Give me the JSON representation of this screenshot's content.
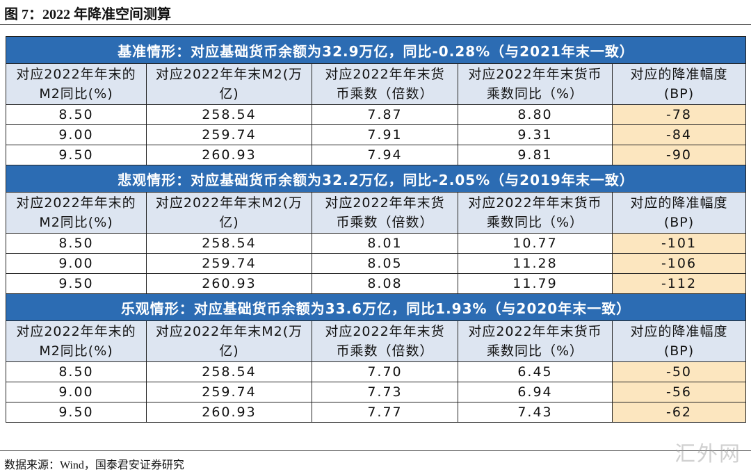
{
  "title": "图 7：2022 年降准空间测算",
  "sections": [
    {
      "heading": "基准情形：对应基础货币余额为32.9万亿，同比-0.28%（与2021年末一致）",
      "headers": [
        [
          "对应2022年年末的",
          "M2同比(%)"
        ],
        [
          "对应2022年年末M2(万",
          "亿)"
        ],
        [
          "对应2022年年末货",
          "币乘数（倍数）"
        ],
        [
          "对应2022年年末货币",
          "乘数同比（%）"
        ],
        [
          "对应的降准幅度",
          "(BP)"
        ]
      ],
      "rows": [
        [
          "8.50",
          "258.54",
          "7.87",
          "8.80",
          "-78"
        ],
        [
          "9.00",
          "259.74",
          "7.91",
          "9.31",
          "-84"
        ],
        [
          "9.50",
          "260.93",
          "7.94",
          "9.81",
          "-90"
        ]
      ]
    },
    {
      "heading": "悲观情形：对应基础货币余额为32.2万亿，同比-2.05%（与2019年末一致）",
      "headers": [
        [
          "对应2022年年末的",
          "M2同比(%)"
        ],
        [
          "对应2022年年末M2(万",
          "亿)"
        ],
        [
          "对应2022年年末货",
          "币乘数（倍数）"
        ],
        [
          "对应2022年年末货币",
          "乘数同比（%）"
        ],
        [
          "对应的降准幅度",
          "(BP)"
        ]
      ],
      "rows": [
        [
          "8.50",
          "258.54",
          "8.01",
          "10.77",
          "-101"
        ],
        [
          "9.00",
          "259.74",
          "8.05",
          "11.28",
          "-106"
        ],
        [
          "9.50",
          "260.93",
          "8.08",
          "11.79",
          "-112"
        ]
      ]
    },
    {
      "heading": "乐观情形：对应基础货币余额为33.6万亿，同比1.93%（与2020年末一致）",
      "headers": [
        [
          "对应2022年年末的",
          "M2同比(%)"
        ],
        [
          "对应2022年年末M2(万",
          "亿)"
        ],
        [
          "对应2022年年末货",
          "币乘数（倍数）"
        ],
        [
          "对应2022年年末货币",
          "乘数同比（%）"
        ],
        [
          "对应的降准幅度",
          "(BP)"
        ]
      ],
      "rows": [
        [
          "8.50",
          "258.54",
          "7.70",
          "6.45",
          "-50"
        ],
        [
          "9.00",
          "259.74",
          "7.73",
          "6.94",
          "-56"
        ],
        [
          "9.50",
          "260.93",
          "7.77",
          "7.43",
          "-62"
        ]
      ]
    }
  ],
  "source": "数据来源：Wind，国泰君安证券研究",
  "watermark": "汇外网"
}
